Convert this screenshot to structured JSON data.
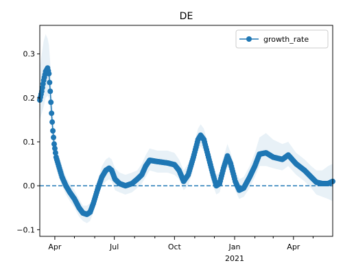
{
  "chart_data": {
    "type": "line",
    "title": "DE",
    "xlabel": "",
    "ylabel": "",
    "x_start": "2020-03-09",
    "x_end": "2021-05-31",
    "ylim": [
      -0.115,
      0.365
    ],
    "yticks": [
      {
        "value": -0.1,
        "label": "−0.1"
      },
      {
        "value": 0.0,
        "label": "0.0"
      },
      {
        "value": 0.1,
        "label": "0.1"
      },
      {
        "value": 0.2,
        "label": "0.2"
      },
      {
        "value": 0.3,
        "label": "0.3"
      }
    ],
    "xticks_major": [
      {
        "date": "2020-04-01",
        "label": "Apr",
        "sublabel": ""
      },
      {
        "date": "2020-07-01",
        "label": "Jul",
        "sublabel": ""
      },
      {
        "date": "2020-10-01",
        "label": "Oct",
        "sublabel": ""
      },
      {
        "date": "2021-01-01",
        "label": "Jan",
        "sublabel": "2021"
      },
      {
        "date": "2021-04-01",
        "label": "Apr",
        "sublabel": ""
      }
    ],
    "xticks_minor": [
      "2020-05-01",
      "2020-06-01",
      "2020-08-01",
      "2020-09-01",
      "2020-11-01",
      "2020-12-01",
      "2021-02-01",
      "2021-03-01",
      "2021-05-01"
    ],
    "reference_line": {
      "y": 0.0,
      "style": "dashed",
      "color": "#1f77b4"
    },
    "legend": {
      "position": "top-right",
      "entries": [
        "growth_rate"
      ]
    },
    "band_color": "#1f77b4",
    "series": [
      {
        "name": "growth_rate",
        "color": "#1f77b4",
        "marker": "circle",
        "points": [
          {
            "date": "2020-03-09",
            "y": 0.195,
            "lo": 0.15,
            "hi": 0.27
          },
          {
            "date": "2020-03-12",
            "y": 0.215,
            "lo": 0.165,
            "hi": 0.3
          },
          {
            "date": "2020-03-15",
            "y": 0.24,
            "lo": 0.18,
            "hi": 0.33
          },
          {
            "date": "2020-03-18",
            "y": 0.26,
            "lo": 0.2,
            "hi": 0.345
          },
          {
            "date": "2020-03-21",
            "y": 0.268,
            "lo": 0.205,
            "hi": 0.335
          },
          {
            "date": "2020-03-23",
            "y": 0.255,
            "lo": 0.2,
            "hi": 0.32
          },
          {
            "date": "2020-03-25",
            "y": 0.215,
            "lo": 0.165,
            "hi": 0.28
          },
          {
            "date": "2020-03-27",
            "y": 0.165,
            "lo": 0.12,
            "hi": 0.22
          },
          {
            "date": "2020-03-29",
            "y": 0.125,
            "lo": 0.09,
            "hi": 0.17
          },
          {
            "date": "2020-03-31",
            "y": 0.095,
            "lo": 0.065,
            "hi": 0.13
          },
          {
            "date": "2020-04-03",
            "y": 0.065,
            "lo": 0.04,
            "hi": 0.095
          },
          {
            "date": "2020-04-07",
            "y": 0.045,
            "lo": 0.02,
            "hi": 0.07
          },
          {
            "date": "2020-04-12",
            "y": 0.02,
            "lo": 0.0,
            "hi": 0.045
          },
          {
            "date": "2020-04-18",
            "y": 0.0,
            "lo": -0.02,
            "hi": 0.02
          },
          {
            "date": "2020-04-24",
            "y": -0.015,
            "lo": -0.035,
            "hi": 0.005
          },
          {
            "date": "2020-05-01",
            "y": -0.03,
            "lo": -0.05,
            "hi": -0.01
          },
          {
            "date": "2020-05-08",
            "y": -0.05,
            "lo": -0.07,
            "hi": -0.03
          },
          {
            "date": "2020-05-14",
            "y": -0.062,
            "lo": -0.08,
            "hi": -0.045
          },
          {
            "date": "2020-05-20",
            "y": -0.065,
            "lo": -0.085,
            "hi": -0.045
          },
          {
            "date": "2020-05-25",
            "y": -0.06,
            "lo": -0.08,
            "hi": -0.04
          },
          {
            "date": "2020-05-30",
            "y": -0.04,
            "lo": -0.06,
            "hi": -0.02
          },
          {
            "date": "2020-06-05",
            "y": -0.01,
            "lo": -0.03,
            "hi": 0.01
          },
          {
            "date": "2020-06-12",
            "y": 0.02,
            "lo": 0.0,
            "hi": 0.045
          },
          {
            "date": "2020-06-18",
            "y": 0.035,
            "lo": 0.01,
            "hi": 0.06
          },
          {
            "date": "2020-06-23",
            "y": 0.04,
            "lo": 0.015,
            "hi": 0.065
          },
          {
            "date": "2020-06-27",
            "y": 0.035,
            "lo": 0.01,
            "hi": 0.06
          },
          {
            "date": "2020-07-02",
            "y": 0.015,
            "lo": -0.01,
            "hi": 0.04
          },
          {
            "date": "2020-07-09",
            "y": 0.005,
            "lo": -0.015,
            "hi": 0.03
          },
          {
            "date": "2020-07-18",
            "y": 0.0,
            "lo": -0.02,
            "hi": 0.025
          },
          {
            "date": "2020-07-28",
            "y": 0.005,
            "lo": -0.015,
            "hi": 0.03
          },
          {
            "date": "2020-08-05",
            "y": 0.015,
            "lo": -0.005,
            "hi": 0.035
          },
          {
            "date": "2020-08-12",
            "y": 0.025,
            "lo": 0.005,
            "hi": 0.05
          },
          {
            "date": "2020-08-18",
            "y": 0.045,
            "lo": 0.02,
            "hi": 0.07
          },
          {
            "date": "2020-08-24",
            "y": 0.058,
            "lo": 0.035,
            "hi": 0.085
          },
          {
            "date": "2020-09-05",
            "y": 0.055,
            "lo": 0.03,
            "hi": 0.08
          },
          {
            "date": "2020-09-20",
            "y": 0.052,
            "lo": 0.03,
            "hi": 0.08
          },
          {
            "date": "2020-10-01",
            "y": 0.048,
            "lo": 0.025,
            "hi": 0.075
          },
          {
            "date": "2020-10-08",
            "y": 0.035,
            "lo": 0.015,
            "hi": 0.06
          },
          {
            "date": "2020-10-15",
            "y": 0.01,
            "lo": -0.01,
            "hi": 0.035
          },
          {
            "date": "2020-10-22",
            "y": 0.025,
            "lo": 0.0,
            "hi": 0.05
          },
          {
            "date": "2020-10-30",
            "y": 0.065,
            "lo": 0.04,
            "hi": 0.09
          },
          {
            "date": "2020-11-06",
            "y": 0.105,
            "lo": 0.08,
            "hi": 0.13
          },
          {
            "date": "2020-11-10",
            "y": 0.115,
            "lo": 0.09,
            "hi": 0.14
          },
          {
            "date": "2020-11-15",
            "y": 0.105,
            "lo": 0.08,
            "hi": 0.13
          },
          {
            "date": "2020-11-22",
            "y": 0.065,
            "lo": 0.04,
            "hi": 0.09
          },
          {
            "date": "2020-11-29",
            "y": 0.025,
            "lo": 0.0,
            "hi": 0.05
          },
          {
            "date": "2020-12-04",
            "y": 0.0,
            "lo": -0.02,
            "hi": 0.025
          },
          {
            "date": "2020-12-09",
            "y": 0.005,
            "lo": -0.015,
            "hi": 0.03
          },
          {
            "date": "2020-12-15",
            "y": 0.04,
            "lo": 0.015,
            "hi": 0.065
          },
          {
            "date": "2020-12-21",
            "y": 0.068,
            "lo": 0.045,
            "hi": 0.095
          },
          {
            "date": "2020-12-26",
            "y": 0.05,
            "lo": 0.025,
            "hi": 0.075
          },
          {
            "date": "2021-01-02",
            "y": 0.01,
            "lo": -0.01,
            "hi": 0.035
          },
          {
            "date": "2021-01-08",
            "y": -0.01,
            "lo": -0.03,
            "hi": 0.015
          },
          {
            "date": "2021-01-15",
            "y": -0.005,
            "lo": -0.025,
            "hi": 0.02
          },
          {
            "date": "2021-01-24",
            "y": 0.02,
            "lo": -0.005,
            "hi": 0.045
          },
          {
            "date": "2021-02-01",
            "y": 0.045,
            "lo": 0.02,
            "hi": 0.075
          },
          {
            "date": "2021-02-08",
            "y": 0.072,
            "lo": 0.045,
            "hi": 0.11
          },
          {
            "date": "2021-02-18",
            "y": 0.075,
            "lo": 0.045,
            "hi": 0.12
          },
          {
            "date": "2021-03-01",
            "y": 0.065,
            "lo": 0.04,
            "hi": 0.105
          },
          {
            "date": "2021-03-15",
            "y": 0.06,
            "lo": 0.035,
            "hi": 0.095
          },
          {
            "date": "2021-03-24",
            "y": 0.07,
            "lo": 0.045,
            "hi": 0.1
          },
          {
            "date": "2021-04-05",
            "y": 0.05,
            "lo": 0.025,
            "hi": 0.075
          },
          {
            "date": "2021-04-18",
            "y": 0.035,
            "lo": 0.01,
            "hi": 0.06
          },
          {
            "date": "2021-04-28",
            "y": 0.02,
            "lo": -0.005,
            "hi": 0.045
          },
          {
            "date": "2021-05-06",
            "y": 0.008,
            "lo": -0.02,
            "hi": 0.035
          },
          {
            "date": "2021-05-15",
            "y": 0.005,
            "lo": -0.025,
            "hi": 0.035
          },
          {
            "date": "2021-05-24",
            "y": 0.005,
            "lo": -0.03,
            "hi": 0.045
          },
          {
            "date": "2021-05-31",
            "y": 0.01,
            "lo": -0.035,
            "hi": 0.05
          }
        ]
      }
    ]
  }
}
